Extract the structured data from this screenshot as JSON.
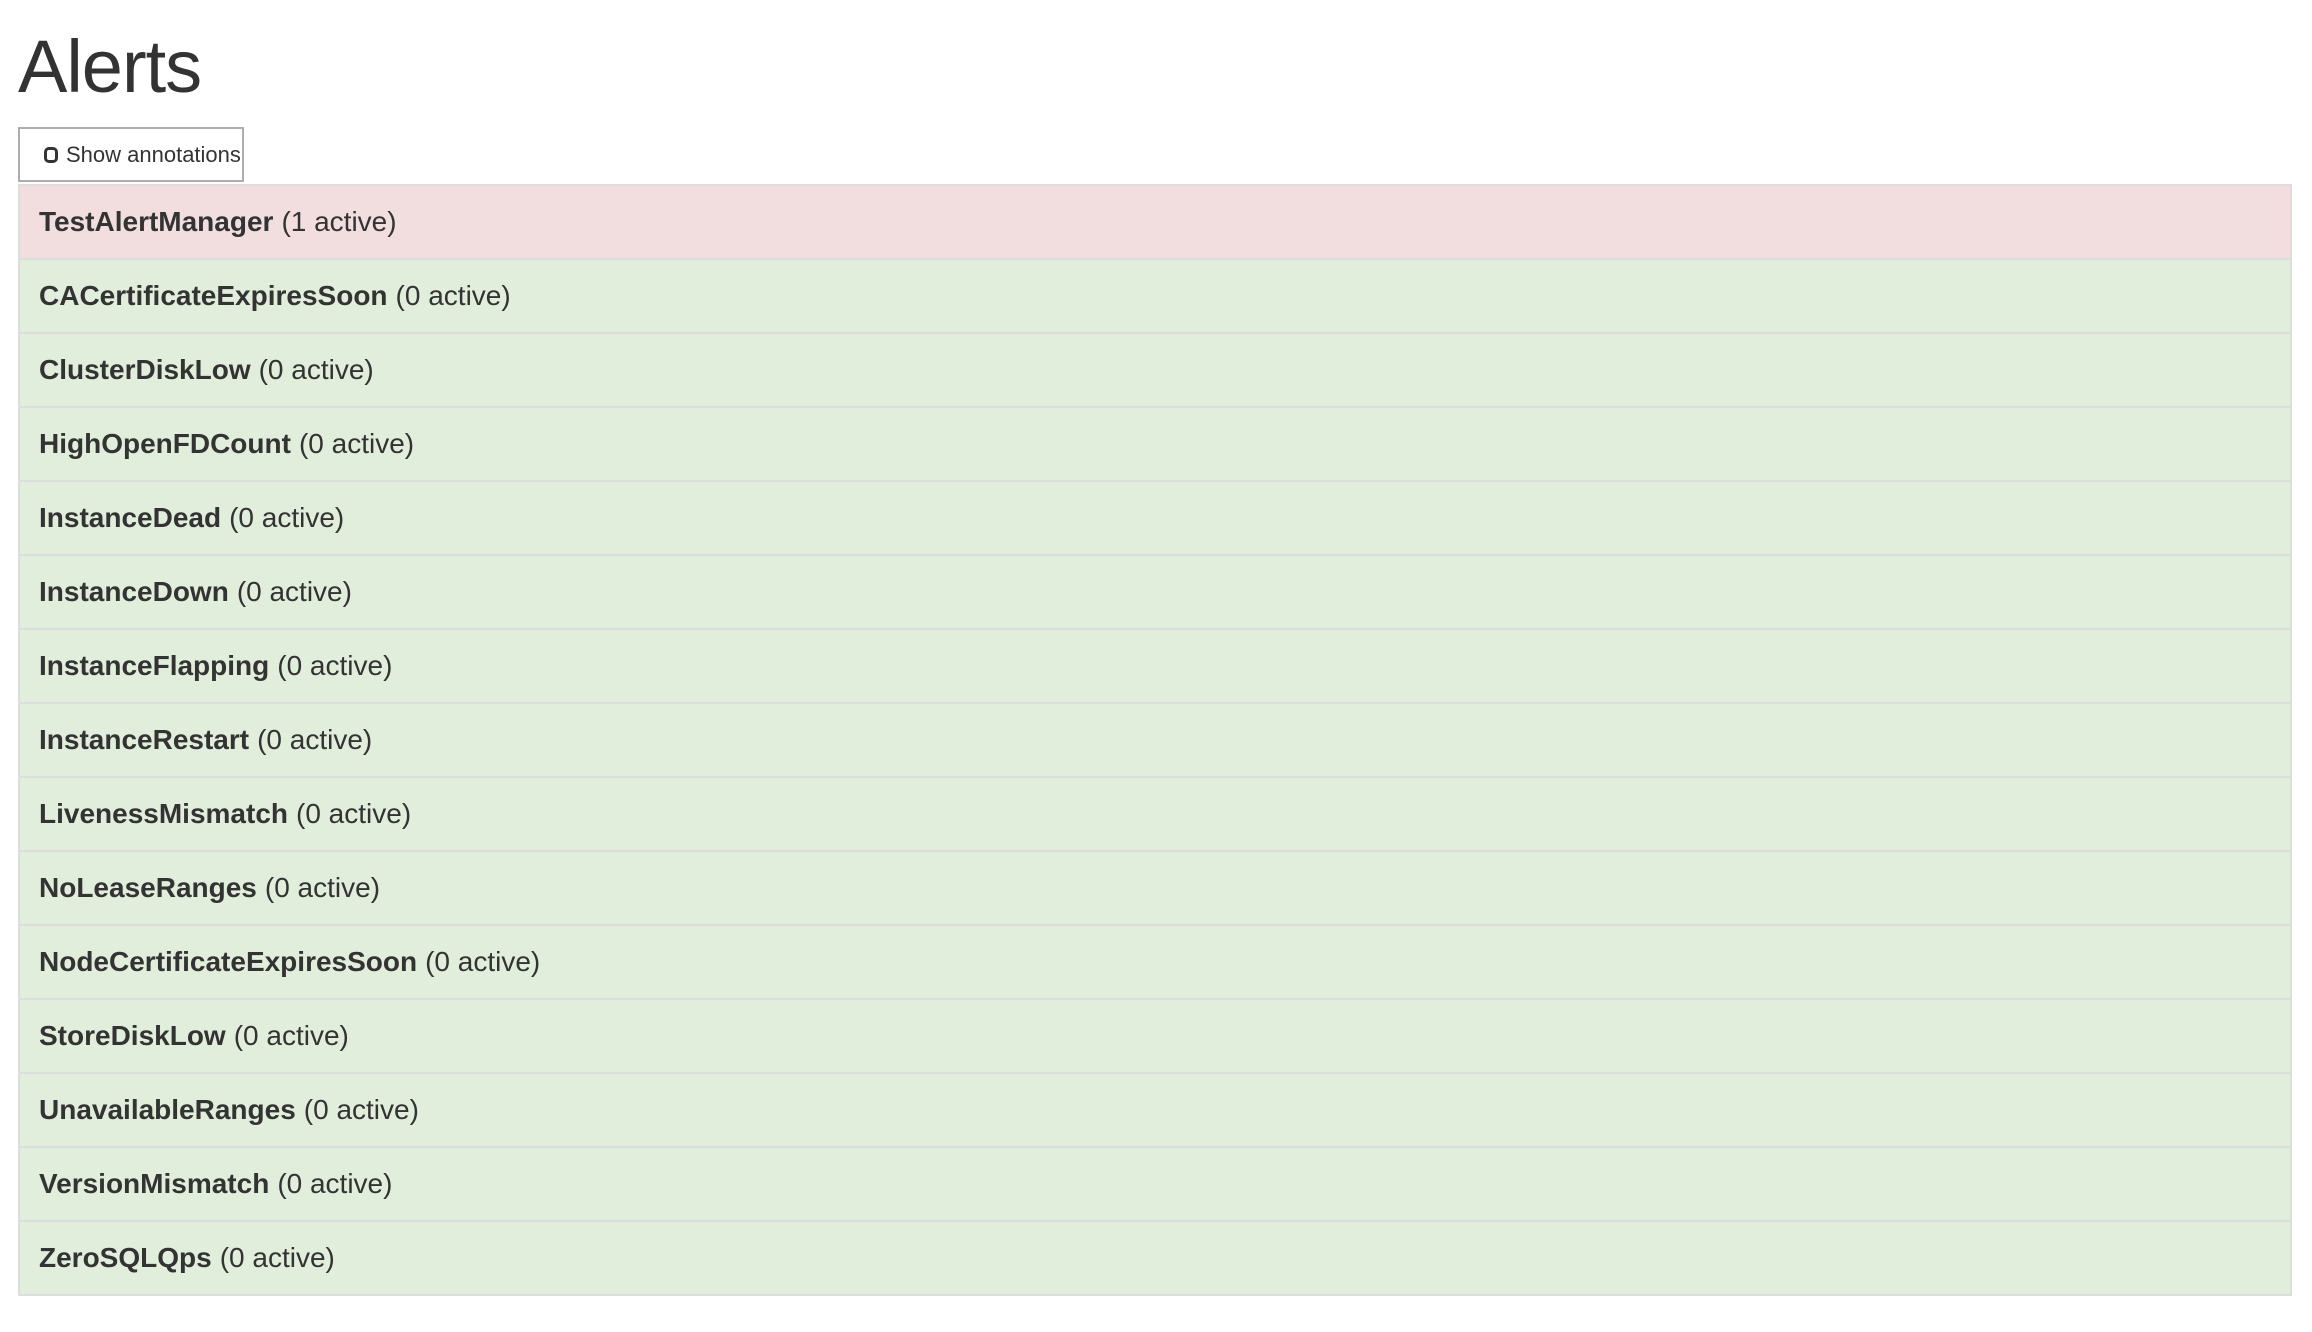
{
  "page": {
    "title": "Alerts"
  },
  "toolbar": {
    "show_annotations_label": "Show annotations",
    "show_annotations_checked": false
  },
  "colors": {
    "firing": "#f2dede",
    "inactive": "#e1eedb"
  },
  "alerts": [
    {
      "name": "TestAlertManager",
      "count": "(1 active)",
      "state": "firing"
    },
    {
      "name": "CACertificateExpiresSoon",
      "count": "(0 active)",
      "state": "inactive"
    },
    {
      "name": "ClusterDiskLow",
      "count": "(0 active)",
      "state": "inactive"
    },
    {
      "name": "HighOpenFDCount",
      "count": "(0 active)",
      "state": "inactive"
    },
    {
      "name": "InstanceDead",
      "count": "(0 active)",
      "state": "inactive"
    },
    {
      "name": "InstanceDown",
      "count": "(0 active)",
      "state": "inactive"
    },
    {
      "name": "InstanceFlapping",
      "count": "(0 active)",
      "state": "inactive"
    },
    {
      "name": "InstanceRestart",
      "count": "(0 active)",
      "state": "inactive"
    },
    {
      "name": "LivenessMismatch",
      "count": "(0 active)",
      "state": "inactive"
    },
    {
      "name": "NoLeaseRanges",
      "count": "(0 active)",
      "state": "inactive"
    },
    {
      "name": "NodeCertificateExpiresSoon",
      "count": "(0 active)",
      "state": "inactive"
    },
    {
      "name": "StoreDiskLow",
      "count": "(0 active)",
      "state": "inactive"
    },
    {
      "name": "UnavailableRanges",
      "count": "(0 active)",
      "state": "inactive"
    },
    {
      "name": "VersionMismatch",
      "count": "(0 active)",
      "state": "inactive"
    },
    {
      "name": "ZeroSQLQps",
      "count": "(0 active)",
      "state": "inactive"
    }
  ]
}
